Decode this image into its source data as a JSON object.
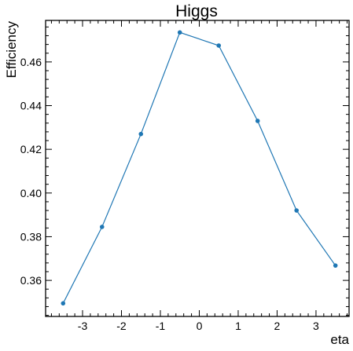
{
  "chart_data": {
    "type": "line",
    "title": "Higgs",
    "xlabel": "eta",
    "ylabel": "Efficiency",
    "x": [
      -3.5,
      -2.5,
      -1.5,
      -0.5,
      0.5,
      1.5,
      2.5,
      3.5
    ],
    "series": [
      {
        "values": [
          0.3495,
          0.3845,
          0.427,
          0.4735,
          0.4675,
          0.433,
          0.392,
          0.3668
        ],
        "color": "#1f77b4"
      }
    ],
    "xlim": [
      -3.95,
      3.85
    ],
    "ylim": [
      0.3435,
      0.479
    ],
    "xticks": [
      -3,
      -2,
      -1,
      0,
      1,
      2,
      3
    ],
    "xtick_labels": [
      "-3",
      "-2",
      "-1",
      "0",
      "1",
      "2",
      "3"
    ],
    "yticks": [
      0.36,
      0.38,
      0.4,
      0.42,
      0.44,
      0.46
    ],
    "ytick_labels": [
      "0.36",
      "0.38",
      "0.40",
      "0.42",
      "0.44",
      "0.46"
    ],
    "grid": false,
    "legend": "none"
  }
}
